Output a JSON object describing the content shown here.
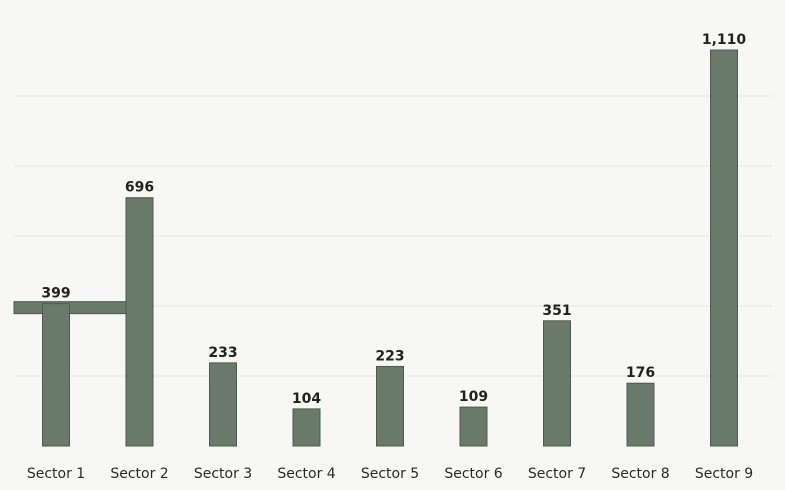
{
  "chart_data": {
    "type": "bar",
    "title": "",
    "xlabel": "",
    "ylabel": "",
    "categories": [
      "Sector 1",
      "Sector 2",
      "Sector 3",
      "Sector 4",
      "Sector 5",
      "Sector 6",
      "Sector 7",
      "Sector 8",
      "Sector 9"
    ],
    "values": [
      399,
      696,
      233,
      104,
      223,
      109,
      351,
      176,
      1110
    ],
    "value_labels": [
      "399",
      "696",
      "233",
      "104",
      "223",
      "109",
      "351",
      "176",
      "1,110"
    ],
    "ylim": [
      0,
      1160
    ],
    "grid": true,
    "legend": "none",
    "colors": {
      "bar": "#6a7a6a",
      "bar_edge": "#4e5a4e",
      "grid": "#e4e4e1",
      "background": "#f7f7f5"
    }
  }
}
